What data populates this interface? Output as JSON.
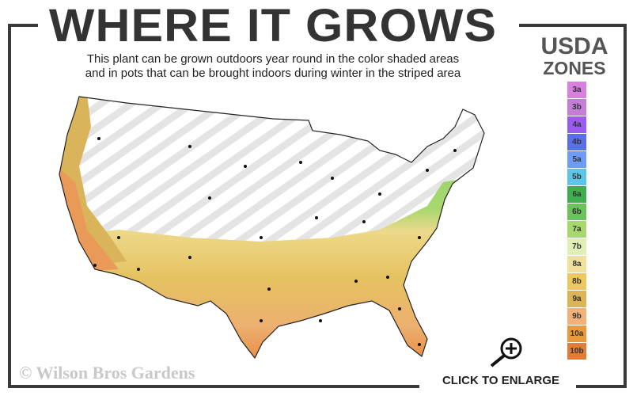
{
  "header": {
    "title": "WHERE IT GROWS",
    "subtitle_line1": "This plant can be grown outdoors year round in the color shaded areas",
    "subtitle_line2": "and in pots that can be brought indoors during winter in the striped area"
  },
  "legend": {
    "title_line1": "USDA",
    "title_line2": "ZONES",
    "zones": [
      {
        "label": "3a",
        "color": "#d97fe0"
      },
      {
        "label": "3b",
        "color": "#c47ed6"
      },
      {
        "label": "4a",
        "color": "#9a5cf0"
      },
      {
        "label": "4b",
        "color": "#5a6ee8"
      },
      {
        "label": "5a",
        "color": "#6e9cf5"
      },
      {
        "label": "5b",
        "color": "#5cc6e6"
      },
      {
        "label": "6a",
        "color": "#3fae4f"
      },
      {
        "label": "6b",
        "color": "#6cc25a"
      },
      {
        "label": "7a",
        "color": "#a6d86e"
      },
      {
        "label": "7b",
        "color": "#e0efb6"
      },
      {
        "label": "8a",
        "color": "#efe19c"
      },
      {
        "label": "8b",
        "color": "#ecc95c"
      },
      {
        "label": "9a",
        "color": "#dcb457"
      },
      {
        "label": "9b",
        "color": "#f2b07a"
      },
      {
        "label": "10a",
        "color": "#ea9a3c"
      },
      {
        "label": "10b",
        "color": "#e37c35"
      }
    ]
  },
  "footer": {
    "copyright": "© Wilson Bros Gardens",
    "enlarge_label": "CLICK TO ENLARGE"
  }
}
